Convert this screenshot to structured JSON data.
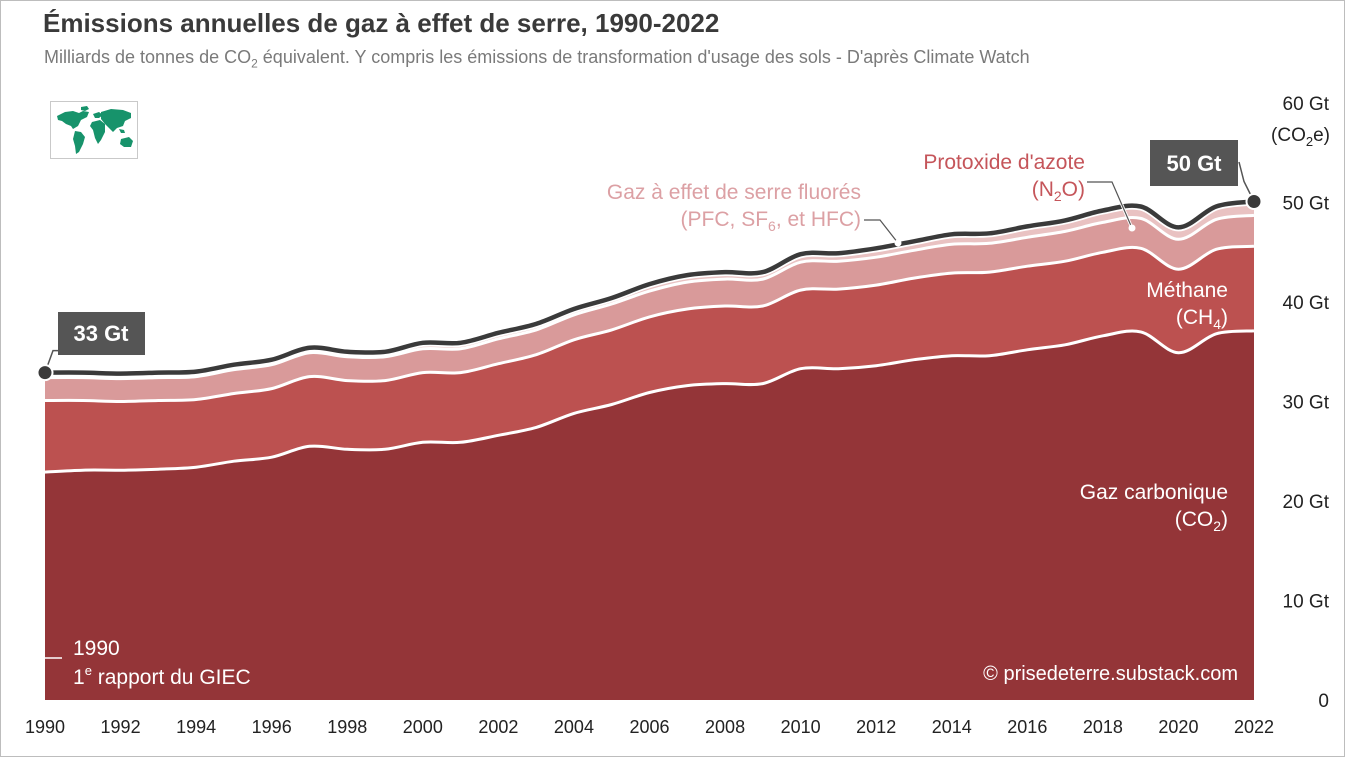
{
  "header": {
    "title": "Émissions annuelles de gaz à effet de serre, 1990-2022",
    "subtitle_before": "Milliards de tonnes de CO",
    "subtitle_sub": "2",
    "subtitle_after": " équivalent. Y compris les émissions de transformation d'usage des sols - D'après Climate Watch"
  },
  "icons": {
    "logo": "world-map-icon"
  },
  "colors": {
    "co2": "#943538",
    "ch4": "#bc5150",
    "n2o": "#d99a9a",
    "fgas": "#e9c2c2",
    "total_line": "#3a3a3a",
    "label_co2": "#ffffff",
    "label_ch4": "#ffffff",
    "label_n2o": "#c5555a",
    "label_fgas": "#dca0a4",
    "badge_bg": "#555555"
  },
  "chart_data": {
    "type": "area",
    "stacked": true,
    "x": [
      1990,
      1991,
      1992,
      1993,
      1994,
      1995,
      1996,
      1997,
      1998,
      1999,
      2000,
      2001,
      2002,
      2003,
      2004,
      2005,
      2006,
      2007,
      2008,
      2009,
      2010,
      2011,
      2012,
      2013,
      2014,
      2015,
      2016,
      2017,
      2018,
      2019,
      2020,
      2021,
      2022
    ],
    "series": [
      {
        "key": "co2",
        "label_line1": "Gaz carbonique",
        "label_line2_before": "(CO",
        "label_line2_sub": "2",
        "label_line2_after": ")",
        "values": [
          22.9,
          23.1,
          23.1,
          23.2,
          23.4,
          24.0,
          24.4,
          25.5,
          25.2,
          25.2,
          25.9,
          25.9,
          26.6,
          27.4,
          28.8,
          29.7,
          30.9,
          31.6,
          31.8,
          31.8,
          33.3,
          33.3,
          33.6,
          34.2,
          34.6,
          34.6,
          35.2,
          35.7,
          36.6,
          37.0,
          34.9,
          36.8,
          37.1
        ]
      },
      {
        "key": "ch4",
        "label_line1": "Méthane",
        "label_line2_before": "(CH",
        "label_line2_sub": "4",
        "label_line2_after": ")",
        "values": [
          7.2,
          7.0,
          6.9,
          6.9,
          6.8,
          6.8,
          6.9,
          7.0,
          6.9,
          6.9,
          7.0,
          7.0,
          7.2,
          7.3,
          7.4,
          7.5,
          7.6,
          7.7,
          7.8,
          7.8,
          7.9,
          8.0,
          8.1,
          8.2,
          8.3,
          8.4,
          8.4,
          8.4,
          8.4,
          8.4,
          8.4,
          8.5,
          8.5
        ]
      },
      {
        "key": "n2o",
        "label_line1": "Protoxide d'azote",
        "label_line2_before": "(N",
        "label_line2_sub": "2",
        "label_line2_after": "O)",
        "values": [
          2.3,
          2.3,
          2.3,
          2.3,
          2.3,
          2.4,
          2.4,
          2.4,
          2.4,
          2.4,
          2.4,
          2.4,
          2.5,
          2.5,
          2.5,
          2.6,
          2.6,
          2.7,
          2.7,
          2.7,
          2.8,
          2.8,
          2.8,
          2.8,
          2.9,
          2.9,
          2.9,
          3.0,
          3.0,
          3.0,
          3.0,
          3.0,
          3.1
        ]
      },
      {
        "key": "fgas",
        "label_line1": "Gaz à effet de serre fluorés",
        "label_line2_before": "(PFC, SF",
        "label_line2_sub": "6",
        "label_line2_after": ", et HFC)",
        "values": [
          0.5,
          0.5,
          0.5,
          0.5,
          0.5,
          0.5,
          0.5,
          0.5,
          0.5,
          0.5,
          0.6,
          0.6,
          0.6,
          0.6,
          0.6,
          0.6,
          0.7,
          0.7,
          0.7,
          0.7,
          0.8,
          0.8,
          0.9,
          0.9,
          1.0,
          1.0,
          1.1,
          1.1,
          1.2,
          1.2,
          1.2,
          1.3,
          1.4
        ]
      }
    ],
    "ylim": [
      0,
      60
    ],
    "y_ticks": [
      0,
      10,
      20,
      30,
      40,
      50,
      60
    ],
    "y_tick_labels": [
      "0",
      "10 Gt",
      "20 Gt",
      "30 Gt",
      "40 Gt",
      "50 Gt",
      "60 Gt"
    ],
    "y_unit_before": "(CO",
    "y_unit_sub": "2",
    "y_unit_after": "e)",
    "x_ticks": [
      1990,
      1992,
      1994,
      1996,
      1998,
      2000,
      2002,
      2004,
      2006,
      2008,
      2010,
      2012,
      2014,
      2016,
      2018,
      2020,
      2022
    ],
    "x_tick_labels": [
      "1990",
      "1992",
      "1994",
      "1996",
      "1998",
      "2000",
      "2002",
      "2004",
      "2006",
      "2008",
      "2010",
      "2012",
      "2014",
      "2016",
      "2018",
      "2020",
      "2022"
    ],
    "grid": false,
    "annotations": {
      "start_badge": "33 Gt",
      "end_badge": "50 Gt",
      "note_line1": "1990",
      "note_line2_sup": "e",
      "note_line2_before": "1",
      "note_line2_after": " rapport du GIEC",
      "credit": "© prisedeterre.substack.com"
    }
  }
}
